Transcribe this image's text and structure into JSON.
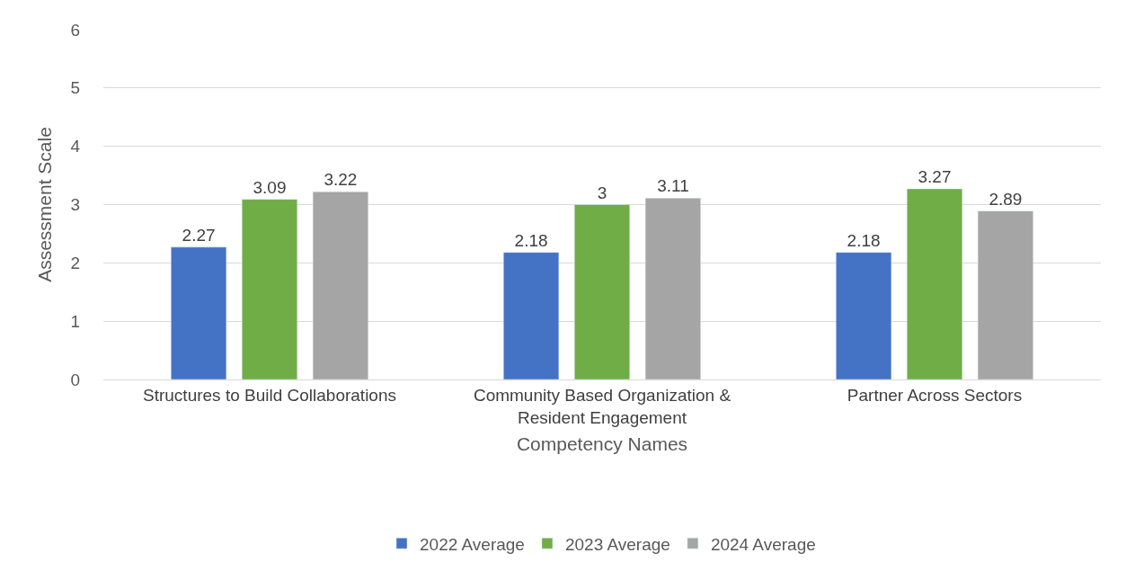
{
  "chart_data": {
    "type": "bar",
    "xlabel": "Competency Names",
    "ylabel": "Assessment Scale",
    "categories": [
      "Structures to Build Collaborations",
      "Community Based Organization & Resident Engagement",
      "Partner Across Sectors"
    ],
    "series": [
      {
        "name": "2022 Average",
        "color": "#4472c4",
        "values": [
          2.27,
          2.18,
          2.18
        ]
      },
      {
        "name": "2023 Average",
        "color": "#70ad47",
        "values": [
          3.09,
          3,
          3.27
        ]
      },
      {
        "name": "2024 Average",
        "color": "#a5a5a5",
        "values": [
          3.22,
          3.11,
          2.89
        ]
      }
    ],
    "ylim": [
      0,
      6
    ],
    "yticks": [
      0,
      1,
      2,
      3,
      4,
      5,
      6
    ],
    "grid": "y",
    "legend": "bottom",
    "data_labels": true
  }
}
